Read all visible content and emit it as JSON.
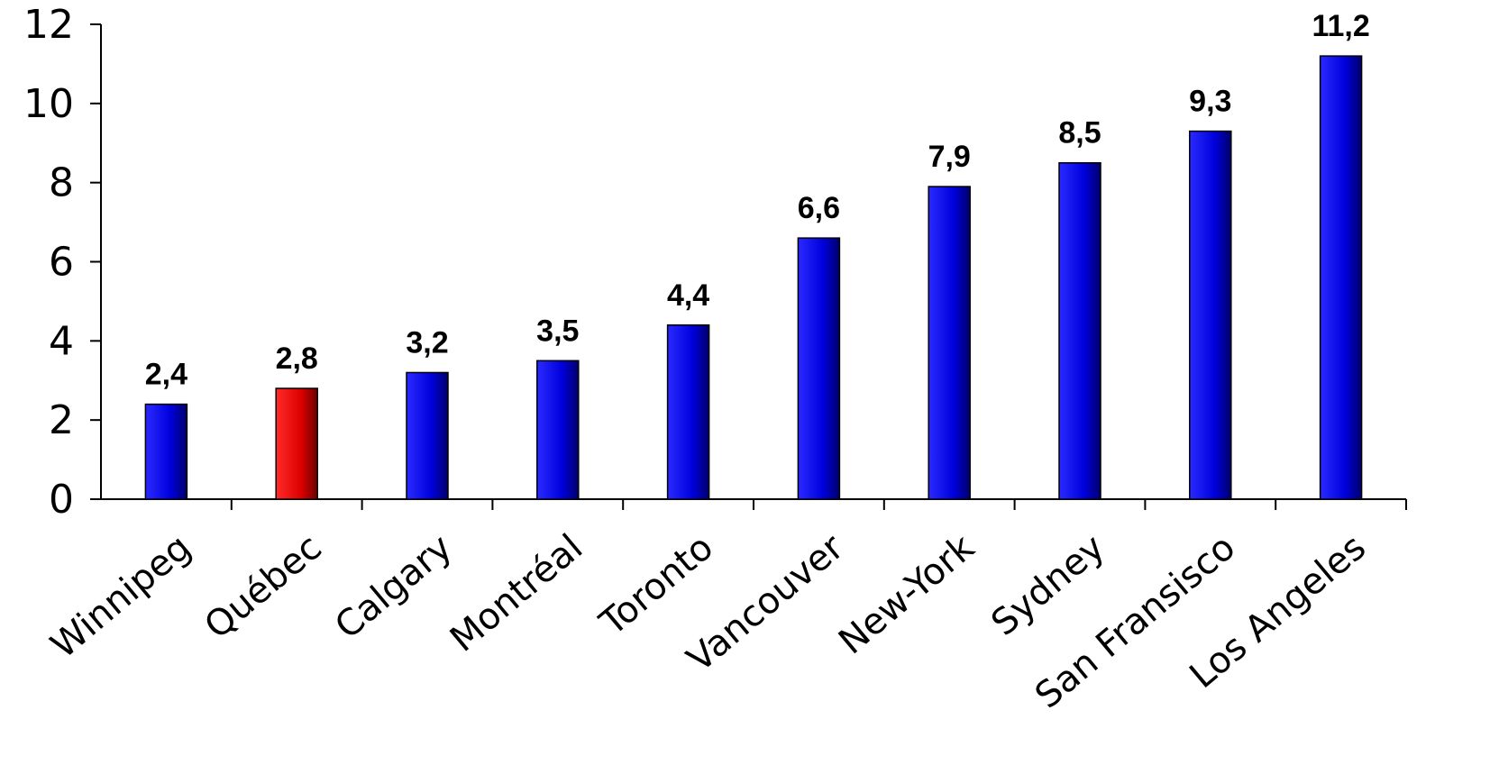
{
  "chart_data": {
    "type": "bar",
    "categories": [
      "Winnipeg",
      "Québec",
      "Calgary",
      "Montréal",
      "Toronto",
      "Vancouver",
      "New-York",
      "Sydney",
      "San Fransisco",
      "Los Angeles"
    ],
    "values": [
      2.4,
      2.8,
      3.2,
      3.5,
      4.4,
      6.6,
      7.9,
      8.5,
      9.3,
      11.2
    ],
    "data_labels": [
      "2,4",
      "2,8",
      "3,2",
      "3,5",
      "4,4",
      "6,6",
      "7,9",
      "8,5",
      "9,3",
      "11,2"
    ],
    "yticks": [
      0,
      2,
      4,
      6,
      8,
      10,
      12
    ],
    "ytick_labels": [
      "0",
      "2",
      "4",
      "6",
      "8",
      "10",
      "12"
    ],
    "ylim": [
      0,
      12
    ],
    "title": "",
    "xlabel": "",
    "ylabel": "",
    "grid": false,
    "highlight_category": "Québec",
    "colors": {
      "bar": "#0000ee",
      "bar_highlight": "#ee0000"
    }
  }
}
